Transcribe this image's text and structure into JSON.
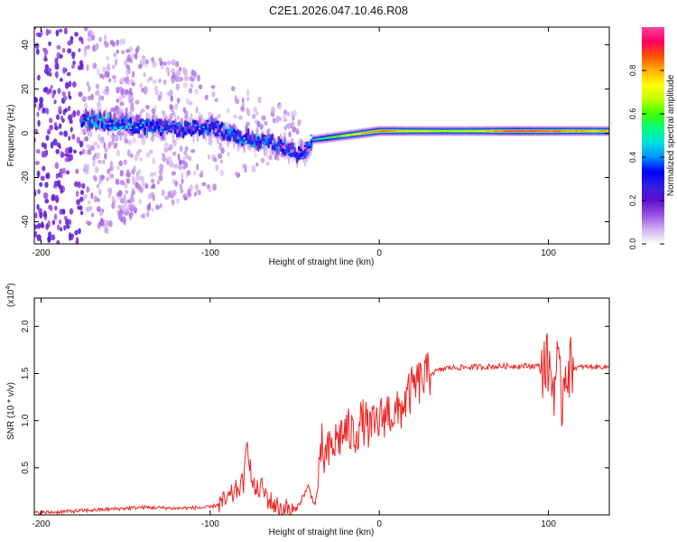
{
  "title": "C2E1.2026.047.10.46.R08",
  "chart_data": [
    {
      "type": "heatmap",
      "name": "spectrogram",
      "xlabel": "Height of straight line (km)",
      "ylabel": "Frequency (Hz)",
      "xlim": [
        -204,
        136
      ],
      "ylim": [
        -50,
        48
      ],
      "xticks": [
        -200,
        -100,
        0,
        100
      ],
      "yticks": [
        -40,
        -20,
        0,
        20,
        40
      ],
      "colorbar": {
        "label": "Normalized spectral amplitude",
        "range": [
          0,
          1
        ],
        "ticks": [
          "0.0",
          "0.2",
          "0.4",
          "0.6",
          "0.8"
        ],
        "ticks_values": [
          0,
          0.2,
          0.4,
          0.6,
          0.8
        ],
        "colors": [
          "#ffffff",
          "#d0b0f0",
          "#9a50e0",
          "#6010d0",
          "#3020e0",
          "#0000ff",
          "#0090ff",
          "#00e0e0",
          "#00ff80",
          "#40ff00",
          "#c0ff00",
          "#ffff00",
          "#ffb000",
          "#ff5000",
          "#ff0060",
          "#ff40a0"
        ]
      },
      "ridge": [
        {
          "x": -176,
          "freq": 6,
          "amp": 0.45
        },
        {
          "x": -160,
          "freq": 5,
          "amp": 0.5
        },
        {
          "x": -140,
          "freq": 3,
          "amp": 0.45
        },
        {
          "x": -120,
          "freq": 2,
          "amp": 0.4
        },
        {
          "x": -100,
          "freq": 3,
          "amp": 0.4
        },
        {
          "x": -80,
          "freq": -2,
          "amp": 0.45
        },
        {
          "x": -60,
          "freq": -5,
          "amp": 0.4
        },
        {
          "x": -45,
          "freq": -10,
          "amp": 0.35
        },
        {
          "x": -40,
          "freq": -3,
          "amp": 0.45
        },
        {
          "x": -30,
          "freq": -2,
          "amp": 0.6
        },
        {
          "x": -20,
          "freq": -1,
          "amp": 0.7
        },
        {
          "x": -10,
          "freq": 0,
          "amp": 0.8
        },
        {
          "x": 0,
          "freq": 1,
          "amp": 0.9
        },
        {
          "x": 20,
          "freq": 1,
          "amp": 0.75
        },
        {
          "x": 40,
          "freq": 1,
          "amp": 0.7
        },
        {
          "x": 60,
          "freq": 1,
          "amp": 0.75
        },
        {
          "x": 80,
          "freq": 1,
          "amp": 0.97
        },
        {
          "x": 100,
          "freq": 1,
          "amp": 0.9
        },
        {
          "x": 110,
          "freq": 1,
          "amp": 0.85
        },
        {
          "x": 136,
          "freq": 1,
          "amp": 0.8
        }
      ]
    },
    {
      "type": "line",
      "name": "snr",
      "xlabel": "Height of straight line (km)",
      "ylabel": "SNR (10 * v/v)",
      "multiplier": "(x10",
      "multiplier_exp": "4",
      "multiplier_close": ")",
      "xlim": [
        -204,
        136
      ],
      "ylim": [
        0,
        2.3
      ],
      "xticks": [
        -200,
        -100,
        0,
        100
      ],
      "yticks": [
        0.5,
        1.0,
        1.5,
        2.0
      ],
      "ytick_labels": [
        "0.5",
        "1.0",
        "1.5",
        "2.0"
      ],
      "color": "#ee2222",
      "x": [
        -204,
        -180,
        -160,
        -140,
        -120,
        -100,
        -90,
        -85,
        -80,
        -78,
        -75,
        -72,
        -70,
        -65,
        -60,
        -55,
        -50,
        -42,
        -38,
        -35,
        -34,
        -33,
        -30,
        -25,
        -20,
        -15,
        -10,
        -5,
        0,
        5,
        10,
        15,
        20,
        30,
        40,
        60,
        80,
        95,
        100,
        103,
        105,
        108,
        110,
        112,
        120,
        136
      ],
      "y": [
        0.02,
        0.04,
        0.06,
        0.08,
        0.07,
        0.08,
        0.15,
        0.25,
        0.35,
        0.8,
        0.3,
        0.25,
        0.3,
        0.15,
        0.08,
        0.06,
        0.03,
        0.3,
        0.1,
        0.45,
        0.75,
        0.6,
        0.65,
        0.8,
        0.9,
        0.85,
        1.0,
        0.9,
        1.0,
        1.1,
        1.05,
        1.2,
        1.35,
        1.5,
        1.56,
        1.57,
        1.58,
        1.58,
        1.6,
        1.35,
        1.58,
        1.2,
        1.6,
        1.55,
        1.57,
        1.57
      ]
    }
  ]
}
